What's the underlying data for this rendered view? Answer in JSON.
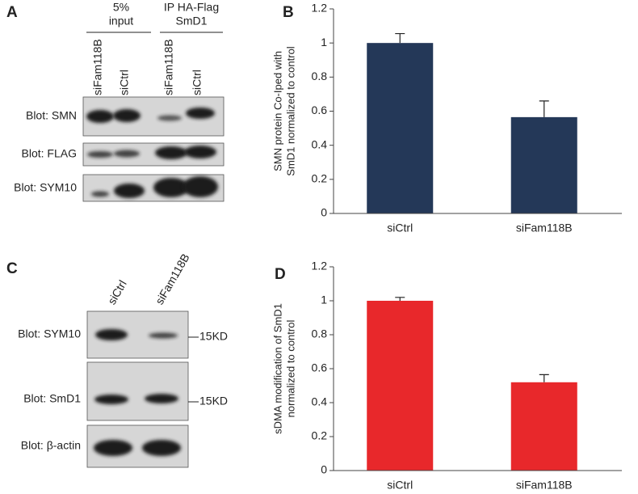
{
  "blot_panels": [
    {
      "panel_label": "A",
      "groups": [
        {
          "lines": [
            "5%",
            "input"
          ]
        },
        {
          "lines": [
            "IP HA-Flag",
            "SmD1"
          ]
        }
      ],
      "lanes": [
        "siFam118B",
        "siCtrl",
        "siFam118B",
        "siCtrl"
      ],
      "blots": [
        {
          "label": "Blot: SMN"
        },
        {
          "label": "Blot: FLAG"
        },
        {
          "label": "Blot: SYM10"
        }
      ]
    },
    {
      "panel_label": "C",
      "lanes": [
        "siCtrl",
        "siFam118B"
      ],
      "blots": [
        {
          "label": "Blot: SYM10",
          "marker": "15KD"
        },
        {
          "label": "Blot: SmD1",
          "marker": "15KD"
        },
        {
          "label": "Blot: β-actin"
        }
      ]
    }
  ],
  "chart_data": [
    {
      "type": "bar",
      "panel_label": "B",
      "ylabel": [
        "SMN protein Co-Iped with",
        "SmD1 normalized to control"
      ],
      "categories": [
        "siCtrl",
        "siFam118B"
      ],
      "values": [
        1.0,
        0.565
      ],
      "errors": [
        0.055,
        0.095
      ],
      "color": "#243858",
      "ylim": [
        0,
        1.2
      ],
      "yticks": [
        0,
        0.2,
        0.4,
        0.6,
        0.8,
        1,
        1.2
      ]
    },
    {
      "type": "bar",
      "panel_label": "D",
      "ylabel": [
        "sDMA modification of SmD1",
        "normalized to control"
      ],
      "categories": [
        "siCtrl",
        "siFam118B"
      ],
      "values": [
        1.0,
        0.52
      ],
      "errors": [
        0.02,
        0.045
      ],
      "color": "#e8282b",
      "ylim": [
        0,
        1.2
      ],
      "yticks": [
        0,
        0.2,
        0.4,
        0.6,
        0.8,
        1,
        1.2
      ]
    }
  ]
}
